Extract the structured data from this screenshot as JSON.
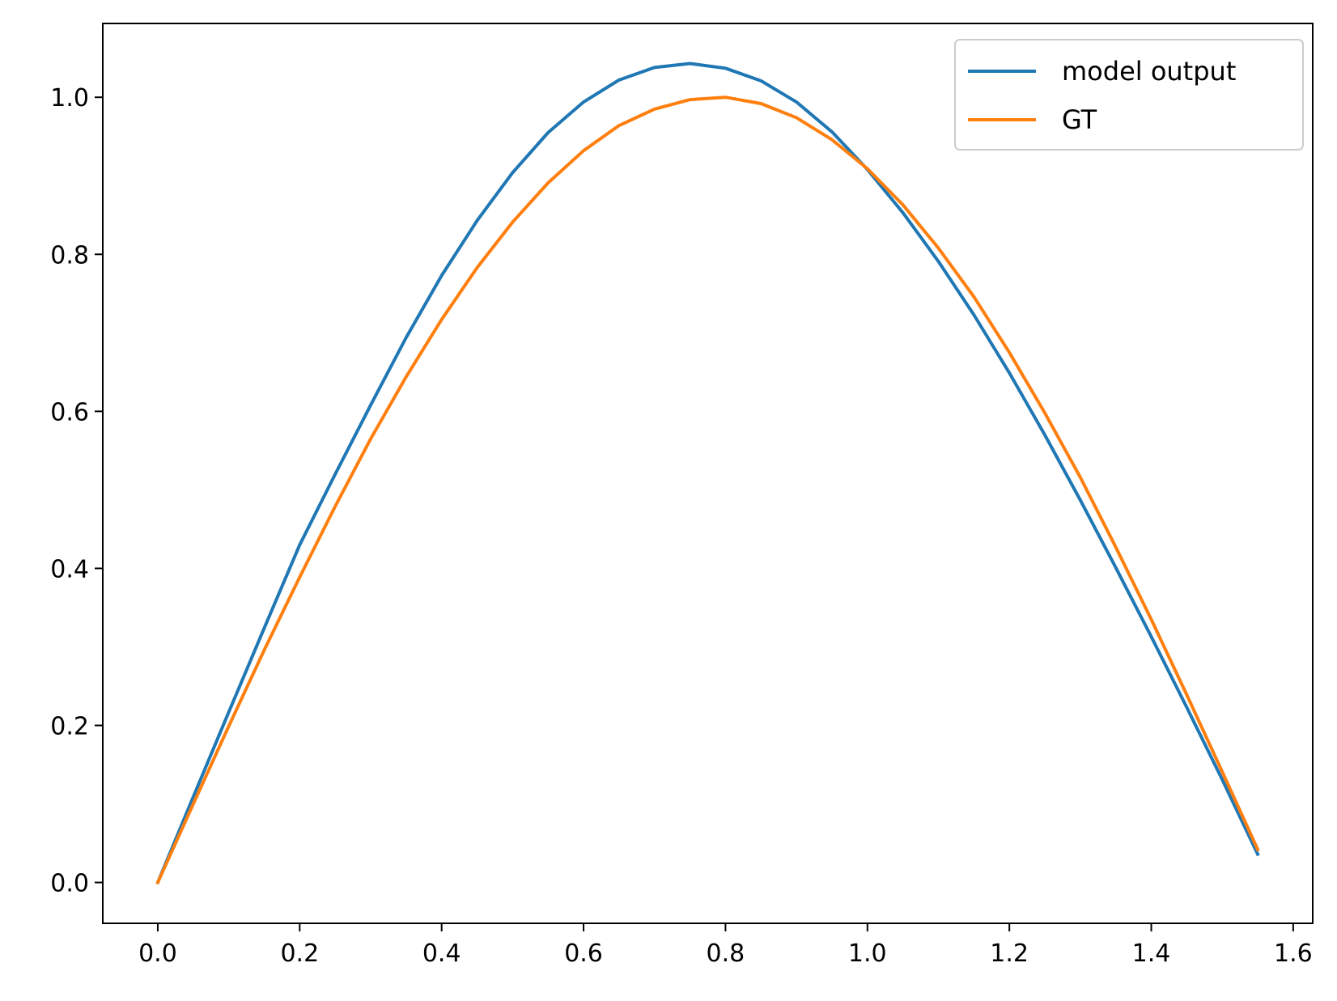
{
  "chart_data": {
    "type": "line",
    "title": "",
    "xlabel": "",
    "ylabel": "",
    "xlim": [
      -0.0775,
      1.6275
    ],
    "ylim": [
      -0.052,
      1.094
    ],
    "xticks": [
      0.0,
      0.2,
      0.4,
      0.6,
      0.8,
      1.0,
      1.2,
      1.4,
      1.6
    ],
    "xtick_labels": [
      "0.0",
      "0.2",
      "0.4",
      "0.6",
      "0.8",
      "1.0",
      "1.2",
      "1.4",
      "1.6"
    ],
    "yticks": [
      0.0,
      0.2,
      0.4,
      0.6,
      0.8,
      1.0
    ],
    "ytick_labels": [
      "0.0",
      "0.2",
      "0.4",
      "0.6",
      "0.8",
      "1.0"
    ],
    "grid": false,
    "legend": {
      "placement": "upper-right"
    },
    "x": [
      0.0,
      0.05,
      0.1,
      0.15,
      0.2,
      0.25,
      0.3,
      0.35,
      0.4,
      0.45,
      0.5,
      0.55,
      0.6,
      0.65,
      0.7,
      0.75,
      0.8,
      0.85,
      0.9,
      0.95,
      1.0,
      1.05,
      1.1,
      1.15,
      1.2,
      1.25,
      1.3,
      1.35,
      1.4,
      1.45,
      1.5,
      1.55
    ],
    "series": [
      {
        "name": "model output",
        "color": "#1f77b4",
        "values": [
          0.0,
          0.109,
          0.217,
          0.324,
          0.43,
          0.52,
          0.608,
          0.694,
          0.773,
          0.843,
          0.904,
          0.955,
          0.994,
          1.022,
          1.038,
          1.043,
          1.037,
          1.021,
          0.994,
          0.956,
          0.908,
          0.853,
          0.791,
          0.723,
          0.649,
          0.57,
          0.487,
          0.401,
          0.313,
          0.223,
          0.131,
          0.036
        ]
      },
      {
        "name": "GT",
        "color": "#ff7f0e",
        "values": [
          0.0,
          0.1,
          0.199,
          0.296,
          0.389,
          0.479,
          0.565,
          0.644,
          0.717,
          0.783,
          0.841,
          0.891,
          0.932,
          0.964,
          0.985,
          0.997,
          1.0,
          0.992,
          0.974,
          0.946,
          0.909,
          0.863,
          0.808,
          0.746,
          0.675,
          0.598,
          0.516,
          0.427,
          0.335,
          0.239,
          0.141,
          0.042
        ]
      }
    ]
  }
}
